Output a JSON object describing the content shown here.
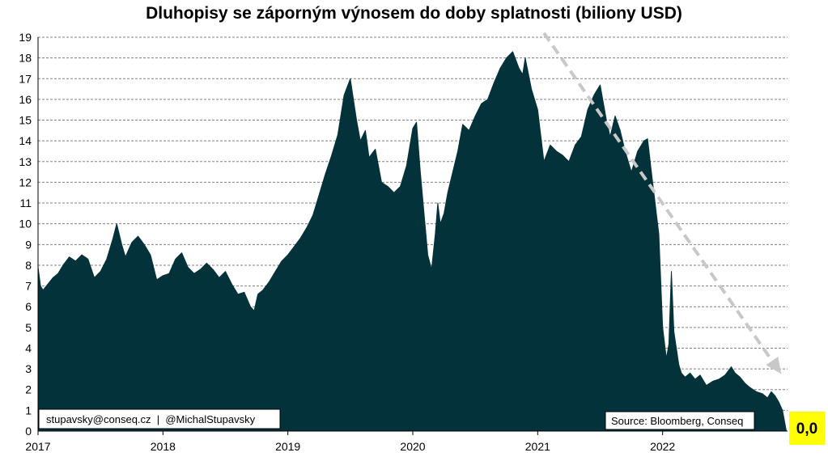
{
  "chart_data": {
    "type": "area",
    "title": "Dluhopisy se záporným výnosem do doby splatnosti (biliony USD)",
    "xlabel": "",
    "ylabel": "",
    "xlim": [
      2017.0,
      2023.0
    ],
    "ylim": [
      0,
      19
    ],
    "x_ticks": [
      2017,
      2018,
      2019,
      2020,
      2021,
      2022
    ],
    "y_ticks": [
      0,
      1,
      2,
      3,
      4,
      5,
      6,
      7,
      8,
      9,
      10,
      11,
      12,
      13,
      14,
      15,
      16,
      17,
      18,
      19
    ],
    "grid": "horizontal dashed",
    "series": [
      {
        "x": [
          2017.0,
          2017.02,
          2017.04,
          2017.08,
          2017.12,
          2017.16,
          2017.2,
          2017.25,
          2017.3,
          2017.35,
          2017.4,
          2017.45,
          2017.5,
          2017.55,
          2017.6,
          2017.63,
          2017.67,
          2017.7,
          2017.75,
          2017.8,
          2017.85,
          2017.9,
          2017.95,
          2018.0,
          2018.05,
          2018.1,
          2018.15,
          2018.2,
          2018.25,
          2018.3,
          2018.35,
          2018.4,
          2018.45,
          2018.5,
          2018.55,
          2018.6,
          2018.65,
          2018.7,
          2018.73,
          2018.76,
          2018.8,
          2018.85,
          2018.9,
          2018.95,
          2019.0,
          2019.05,
          2019.1,
          2019.15,
          2019.2,
          2019.25,
          2019.3,
          2019.35,
          2019.4,
          2019.45,
          2019.5,
          2019.55,
          2019.58,
          2019.62,
          2019.65,
          2019.7,
          2019.75,
          2019.8,
          2019.85,
          2019.9,
          2019.95,
          2020.0,
          2020.03,
          2020.06,
          2020.09,
          2020.12,
          2020.15,
          2020.18,
          2020.2,
          2020.22,
          2020.25,
          2020.28,
          2020.32,
          2020.36,
          2020.4,
          2020.45,
          2020.5,
          2020.55,
          2020.6,
          2020.65,
          2020.7,
          2020.75,
          2020.8,
          2020.85,
          2020.88,
          2020.9,
          2020.95,
          2021.0,
          2021.05,
          2021.1,
          2021.15,
          2021.2,
          2021.25,
          2021.3,
          2021.35,
          2021.4,
          2021.45,
          2021.5,
          2021.55,
          2021.58,
          2021.62,
          2021.66,
          2021.7,
          2021.75,
          2021.8,
          2021.85,
          2021.88,
          2021.91,
          2021.94,
          2021.97,
          2022.0,
          2022.03,
          2022.05,
          2022.07,
          2022.09,
          2022.11,
          2022.13,
          2022.15,
          2022.18,
          2022.22,
          2022.26,
          2022.3,
          2022.35,
          2022.4,
          2022.45,
          2022.5,
          2022.55,
          2022.58,
          2022.62,
          2022.66,
          2022.7,
          2022.75,
          2022.8,
          2022.84,
          2022.87,
          2022.9,
          2022.93,
          2022.96,
          2022.99
        ],
        "values": [
          7.9,
          7.0,
          6.8,
          7.1,
          7.4,
          7.6,
          8.0,
          8.4,
          8.2,
          8.5,
          8.3,
          7.4,
          7.7,
          8.3,
          9.3,
          10.0,
          9.0,
          8.4,
          9.1,
          9.4,
          9.0,
          8.5,
          7.3,
          7.5,
          7.6,
          8.3,
          8.6,
          7.9,
          7.6,
          7.8,
          8.1,
          7.8,
          7.4,
          7.7,
          7.1,
          6.6,
          6.7,
          6.0,
          5.8,
          6.6,
          6.8,
          7.2,
          7.7,
          8.2,
          8.5,
          8.9,
          9.3,
          9.8,
          10.4,
          11.4,
          12.4,
          13.3,
          14.3,
          16.2,
          17.0,
          15.0,
          14.0,
          14.5,
          13.2,
          13.6,
          12.0,
          11.8,
          11.5,
          11.8,
          12.8,
          14.6,
          14.9,
          12.5,
          10.5,
          8.5,
          7.8,
          9.5,
          11.0,
          10.0,
          10.5,
          11.5,
          12.5,
          13.5,
          14.8,
          14.5,
          15.2,
          15.8,
          16.0,
          16.8,
          17.5,
          18.0,
          18.3,
          17.5,
          17.2,
          18.0,
          16.5,
          15.5,
          13.0,
          13.8,
          13.5,
          13.3,
          13.0,
          13.8,
          14.2,
          15.5,
          16.2,
          16.7,
          15.0,
          14.2,
          15.2,
          14.5,
          13.5,
          12.5,
          13.5,
          14.0,
          14.1,
          12.5,
          11.0,
          9.5,
          5.0,
          3.5,
          4.2,
          7.7,
          4.8,
          4.0,
          3.2,
          2.8,
          2.6,
          2.8,
          2.5,
          2.7,
          2.2,
          2.4,
          2.5,
          2.7,
          3.1,
          2.8,
          2.6,
          2.3,
          2.1,
          1.9,
          1.8,
          1.6,
          1.9,
          1.7,
          1.4,
          1.0,
          0.0
        ],
        "color": "#03323b"
      }
    ],
    "annotations": {
      "contact_text": "stupavsky@conseq.cz  |  @MichalStupavsky",
      "source_text": "Source: Bloomberg, Conseq",
      "last_value_text": "0,0",
      "last_value_bg": "#ffff00",
      "trend_arrow": {
        "from": [
          2021.05,
          19.2
        ],
        "to": [
          2022.95,
          2.75
        ],
        "color": "#c8c8c8"
      }
    }
  }
}
